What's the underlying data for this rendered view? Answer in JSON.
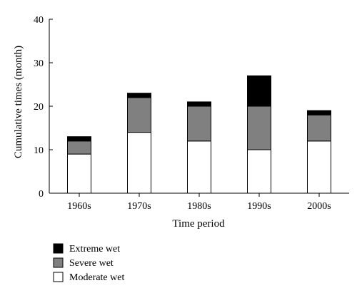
{
  "chart_data": {
    "type": "bar",
    "stacked": true,
    "categories": [
      "1960s",
      "1970s",
      "1980s",
      "1990s",
      "2000s"
    ],
    "series": [
      {
        "name": "Moderate wet",
        "color": "#ffffff",
        "values": [
          9,
          14,
          12,
          10,
          12
        ]
      },
      {
        "name": "Severe wet",
        "color": "#808080",
        "values": [
          3,
          8,
          8,
          10,
          6
        ]
      },
      {
        "name": "Extreme wet",
        "color": "#000000",
        "values": [
          1,
          1,
          1,
          7,
          1
        ]
      }
    ],
    "legend_order": [
      "Extreme wet",
      "Severe wet",
      "Moderate wet"
    ],
    "xlabel": "Time period",
    "ylabel": "Cumulative times (month)",
    "ylim": [
      0,
      40
    ],
    "yticks": [
      "0",
      "10",
      "20",
      "30",
      "40"
    ],
    "grid": false,
    "legend_position": "bottom-left"
  }
}
